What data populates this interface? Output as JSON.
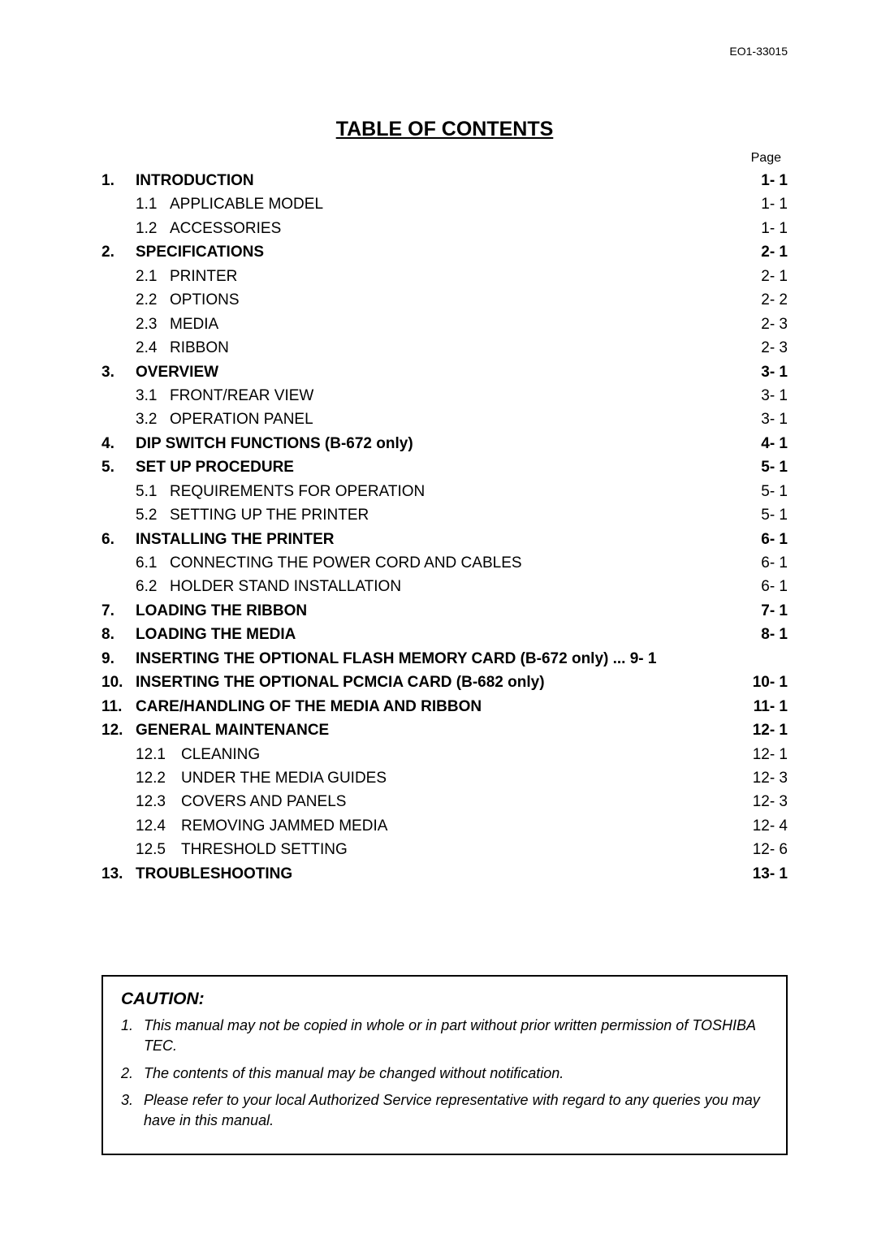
{
  "doc_id": "EO1-33015",
  "title": "TABLE OF CONTENTS",
  "page_label": "Page",
  "toc": {
    "s1": {
      "num": "1.",
      "title": "INTRODUCTION",
      "page": "1- 1",
      "sub": [
        {
          "num": "1.1",
          "title": "APPLICABLE MODEL",
          "page": "1- 1"
        },
        {
          "num": "1.2",
          "title": "ACCESSORIES",
          "page": "1- 1"
        }
      ]
    },
    "s2": {
      "num": "2.",
      "title": "SPECIFICATIONS",
      "page": "2- 1",
      "sub": [
        {
          "num": "2.1",
          "title": "PRINTER",
          "page": "2- 1"
        },
        {
          "num": "2.2",
          "title": "OPTIONS",
          "page": "2- 2"
        },
        {
          "num": "2.3",
          "title": "MEDIA",
          "page": "2- 3"
        },
        {
          "num": "2.4",
          "title": "RIBBON",
          "page": "2- 3"
        }
      ]
    },
    "s3": {
      "num": "3.",
      "title": "OVERVIEW",
      "page": "3- 1",
      "sub": [
        {
          "num": "3.1",
          "title": "FRONT/REAR VIEW",
          "page": "3- 1"
        },
        {
          "num": "3.2",
          "title": "OPERATION PANEL",
          "page": "3- 1"
        }
      ]
    },
    "s4": {
      "num": "4.",
      "title": "DIP SWITCH FUNCTIONS (B-672 only)",
      "page": "4- 1"
    },
    "s5": {
      "num": "5.",
      "title": "SET UP PROCEDURE",
      "page": "5- 1",
      "sub": [
        {
          "num": "5.1",
          "title": "REQUIREMENTS FOR OPERATION",
          "page": "5- 1"
        },
        {
          "num": "5.2",
          "title": "SETTING UP THE PRINTER",
          "page": "5- 1"
        }
      ]
    },
    "s6": {
      "num": "6.",
      "title": "INSTALLING THE PRINTER",
      "page": "6- 1",
      "sub": [
        {
          "num": "6.1",
          "title": "CONNECTING THE POWER CORD AND CABLES",
          "page": "6- 1"
        },
        {
          "num": "6.2",
          "title": "HOLDER STAND INSTALLATION",
          "page": "6- 1"
        }
      ]
    },
    "s7": {
      "num": "7.",
      "title": "LOADING THE RIBBON",
      "page": "7- 1"
    },
    "s8": {
      "num": "8.",
      "title": "LOADING THE MEDIA",
      "page": "8- 1"
    },
    "s9": {
      "num": "9.",
      "title": "INSERTING THE OPTIONAL FLASH MEMORY CARD (B-672 only) ... 9- 1",
      "page": ""
    },
    "s10": {
      "num": "10.",
      "title": "INSERTING THE OPTIONAL PCMCIA CARD (B-682 only)",
      "page": "10- 1"
    },
    "s11": {
      "num": "11.",
      "title": "CARE/HANDLING OF THE MEDIA AND RIBBON",
      "page": "11- 1"
    },
    "s12": {
      "num": "12.",
      "title": "GENERAL MAINTENANCE",
      "page": "12- 1",
      "sub": [
        {
          "num": "12.1",
          "title": "CLEANING",
          "page": "12- 1"
        },
        {
          "num": "12.2",
          "title": "UNDER THE MEDIA GUIDES",
          "page": "12- 3"
        },
        {
          "num": "12.3",
          "title": "COVERS AND PANELS",
          "page": "12- 3"
        },
        {
          "num": "12.4",
          "title": "REMOVING JAMMED MEDIA",
          "page": "12- 4"
        },
        {
          "num": "12.5",
          "title": "THRESHOLD SETTING",
          "page": "12- 6"
        }
      ]
    },
    "s13": {
      "num": "13.",
      "title": "TROUBLESHOOTING",
      "page": "13- 1"
    }
  },
  "caution": {
    "heading": "CAUTION:",
    "items": [
      {
        "num": "1.",
        "text": "This manual may not be copied in whole or in part without prior written permission of TOSHIBA TEC."
      },
      {
        "num": "2.",
        "text": "The contents of this manual may be changed without notification."
      },
      {
        "num": "3.",
        "text": "Please refer to your local Authorized Service representative with regard to any queries you may have in this manual."
      }
    ]
  },
  "style": {
    "colors": {
      "text": "#000000",
      "background": "#ffffff",
      "border": "#000000"
    },
    "font_family": "Arial, Helvetica, sans-serif",
    "title_fontsize": 25,
    "body_fontsize": 19,
    "caution_title_fontsize": 21,
    "caution_body_fontsize": 18
  }
}
